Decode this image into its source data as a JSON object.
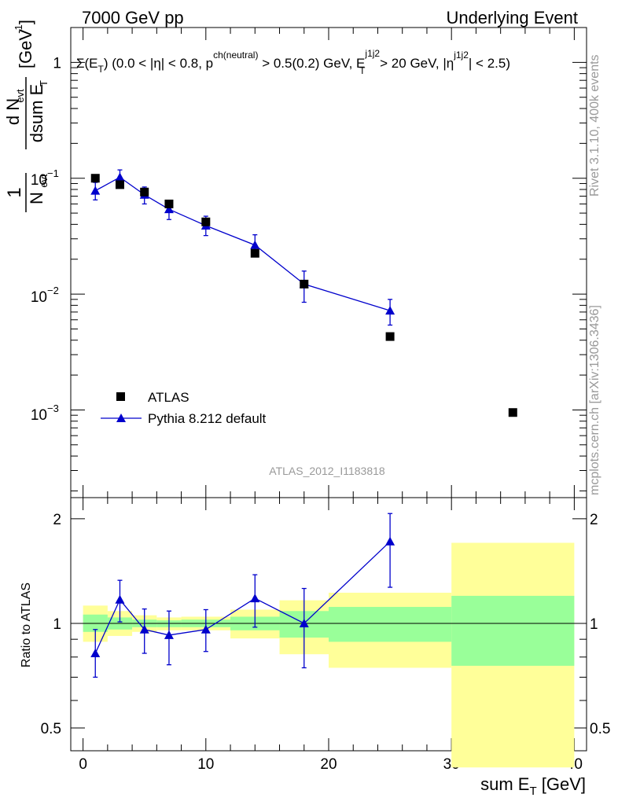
{
  "header": {
    "left": "7000 GeV pp",
    "right": "Underlying Event"
  },
  "plot_title": "Σ(E_T) (0.0 < |η| < 0.8, p^ch(neutral) > 0.5(0.2) GeV, E_T^j1j2 > 20 GeV, |η^j1j2| < 2.5)",
  "title_parts": {
    "a": "Σ(E",
    "a_sub": "T",
    "b": ") (0.0 < |η| < 0.8, p",
    "b_sup": "ch(neutral)",
    "c": " > 0.5(0.2) GeV, E",
    "c_sup": "j1j2",
    "c_sub": "T",
    "d": " > 20 GeV, |η",
    "d_sup": "j1j2",
    "e": "| < 2.5)"
  },
  "y_label_parts": {
    "one": "1",
    "n": "N",
    "evt": "evt",
    "dn": "d N",
    "dsum": "dsum E",
    "t": "T",
    "unit": "[GeV",
    "unit_sup": "-1",
    "unit_close": "]"
  },
  "right_side": {
    "rivet": "Rivet 3.1.10,  400k events",
    "mcplots": "mcplots.cern.ch [arXiv:1306.3436]"
  },
  "analysis_id": "ATLAS_2012_I1183818",
  "legend": {
    "data_label": "ATLAS",
    "mc_label": "Pythia 8.212 default"
  },
  "ratio_ylabel": "Ratio to ATLAS",
  "x_axis": {
    "label_main": "sum E",
    "label_sub": "T",
    "label_unit": " [GeV]"
  },
  "colors": {
    "mc": "#0000cc",
    "data": "#000000",
    "band_inner": "#99ff99",
    "band_outer": "#ffff99"
  },
  "chart_data": [
    {
      "type": "scatter",
      "panel": "main",
      "x_range": [
        -1,
        41
      ],
      "y_range": [
        0.000175,
        2.0
      ],
      "y_scale": "log",
      "y_tick_labels": [
        "1",
        "10^-1",
        "10^-2",
        "10^-3"
      ],
      "y_tick_values": [
        1,
        0.1,
        0.01,
        0.001
      ],
      "series": [
        {
          "name": "ATLAS",
          "x": [
            1,
            3,
            5,
            7,
            10,
            14,
            18,
            25,
            35
          ],
          "y": [
            0.1,
            0.088,
            0.076,
            0.06,
            0.042,
            0.0225,
            0.0122,
            0.0043,
            0.00095
          ]
        },
        {
          "name": "Pythia 8.212 default",
          "x": [
            1,
            3,
            5,
            7,
            10,
            14,
            18,
            25
          ],
          "y": [
            0.078,
            0.102,
            0.072,
            0.054,
            0.039,
            0.0265,
            0.0122,
            0.0072
          ],
          "y_err_low": [
            0.065,
            0.088,
            0.06,
            0.044,
            0.032,
            0.022,
            0.0085,
            0.0054
          ],
          "y_err_high": [
            0.092,
            0.118,
            0.084,
            0.064,
            0.047,
            0.0325,
            0.0158,
            0.009
          ]
        }
      ]
    },
    {
      "type": "line",
      "panel": "ratio",
      "ylabel": "Ratio to ATLAS",
      "xlabel": "sum E_T [GeV]",
      "x_range": [
        -1,
        41
      ],
      "y_range": [
        0.43,
        2.3
      ],
      "y_scale": "log",
      "x_ticks": [
        0,
        10,
        20,
        30,
        40
      ],
      "y_ticks": [
        0.5,
        1,
        2
      ],
      "reference_line": 1,
      "series": [
        {
          "name": "Pythia 8.212 default / ATLAS",
          "x": [
            1,
            3,
            5,
            7,
            10,
            14,
            18,
            25
          ],
          "y": [
            0.82,
            1.17,
            0.96,
            0.925,
            0.96,
            1.18,
            1.0,
            1.72
          ],
          "y_err_low": [
            0.7,
            1.01,
            0.82,
            0.76,
            0.83,
            0.975,
            0.745,
            1.27
          ],
          "y_err_high": [
            0.96,
            1.33,
            1.1,
            1.085,
            1.095,
            1.38,
            1.26,
            2.07
          ]
        }
      ],
      "bands": {
        "bin_edges": [
          0,
          2,
          4,
          6,
          8,
          12,
          16,
          20,
          30,
          40
        ],
        "inner_low": [
          0.945,
          0.96,
          0.975,
          0.975,
          0.975,
          0.955,
          0.91,
          0.885,
          0.755
        ],
        "inner_high": [
          1.06,
          1.04,
          1.025,
          1.02,
          1.025,
          1.045,
          1.085,
          1.115,
          1.2
        ],
        "outer_low": [
          0.885,
          0.92,
          0.945,
          0.955,
          0.955,
          0.905,
          0.815,
          0.745,
          0.385
        ],
        "outer_high": [
          1.125,
          1.085,
          1.055,
          1.04,
          1.045,
          1.095,
          1.165,
          1.225,
          1.705
        ]
      }
    }
  ]
}
